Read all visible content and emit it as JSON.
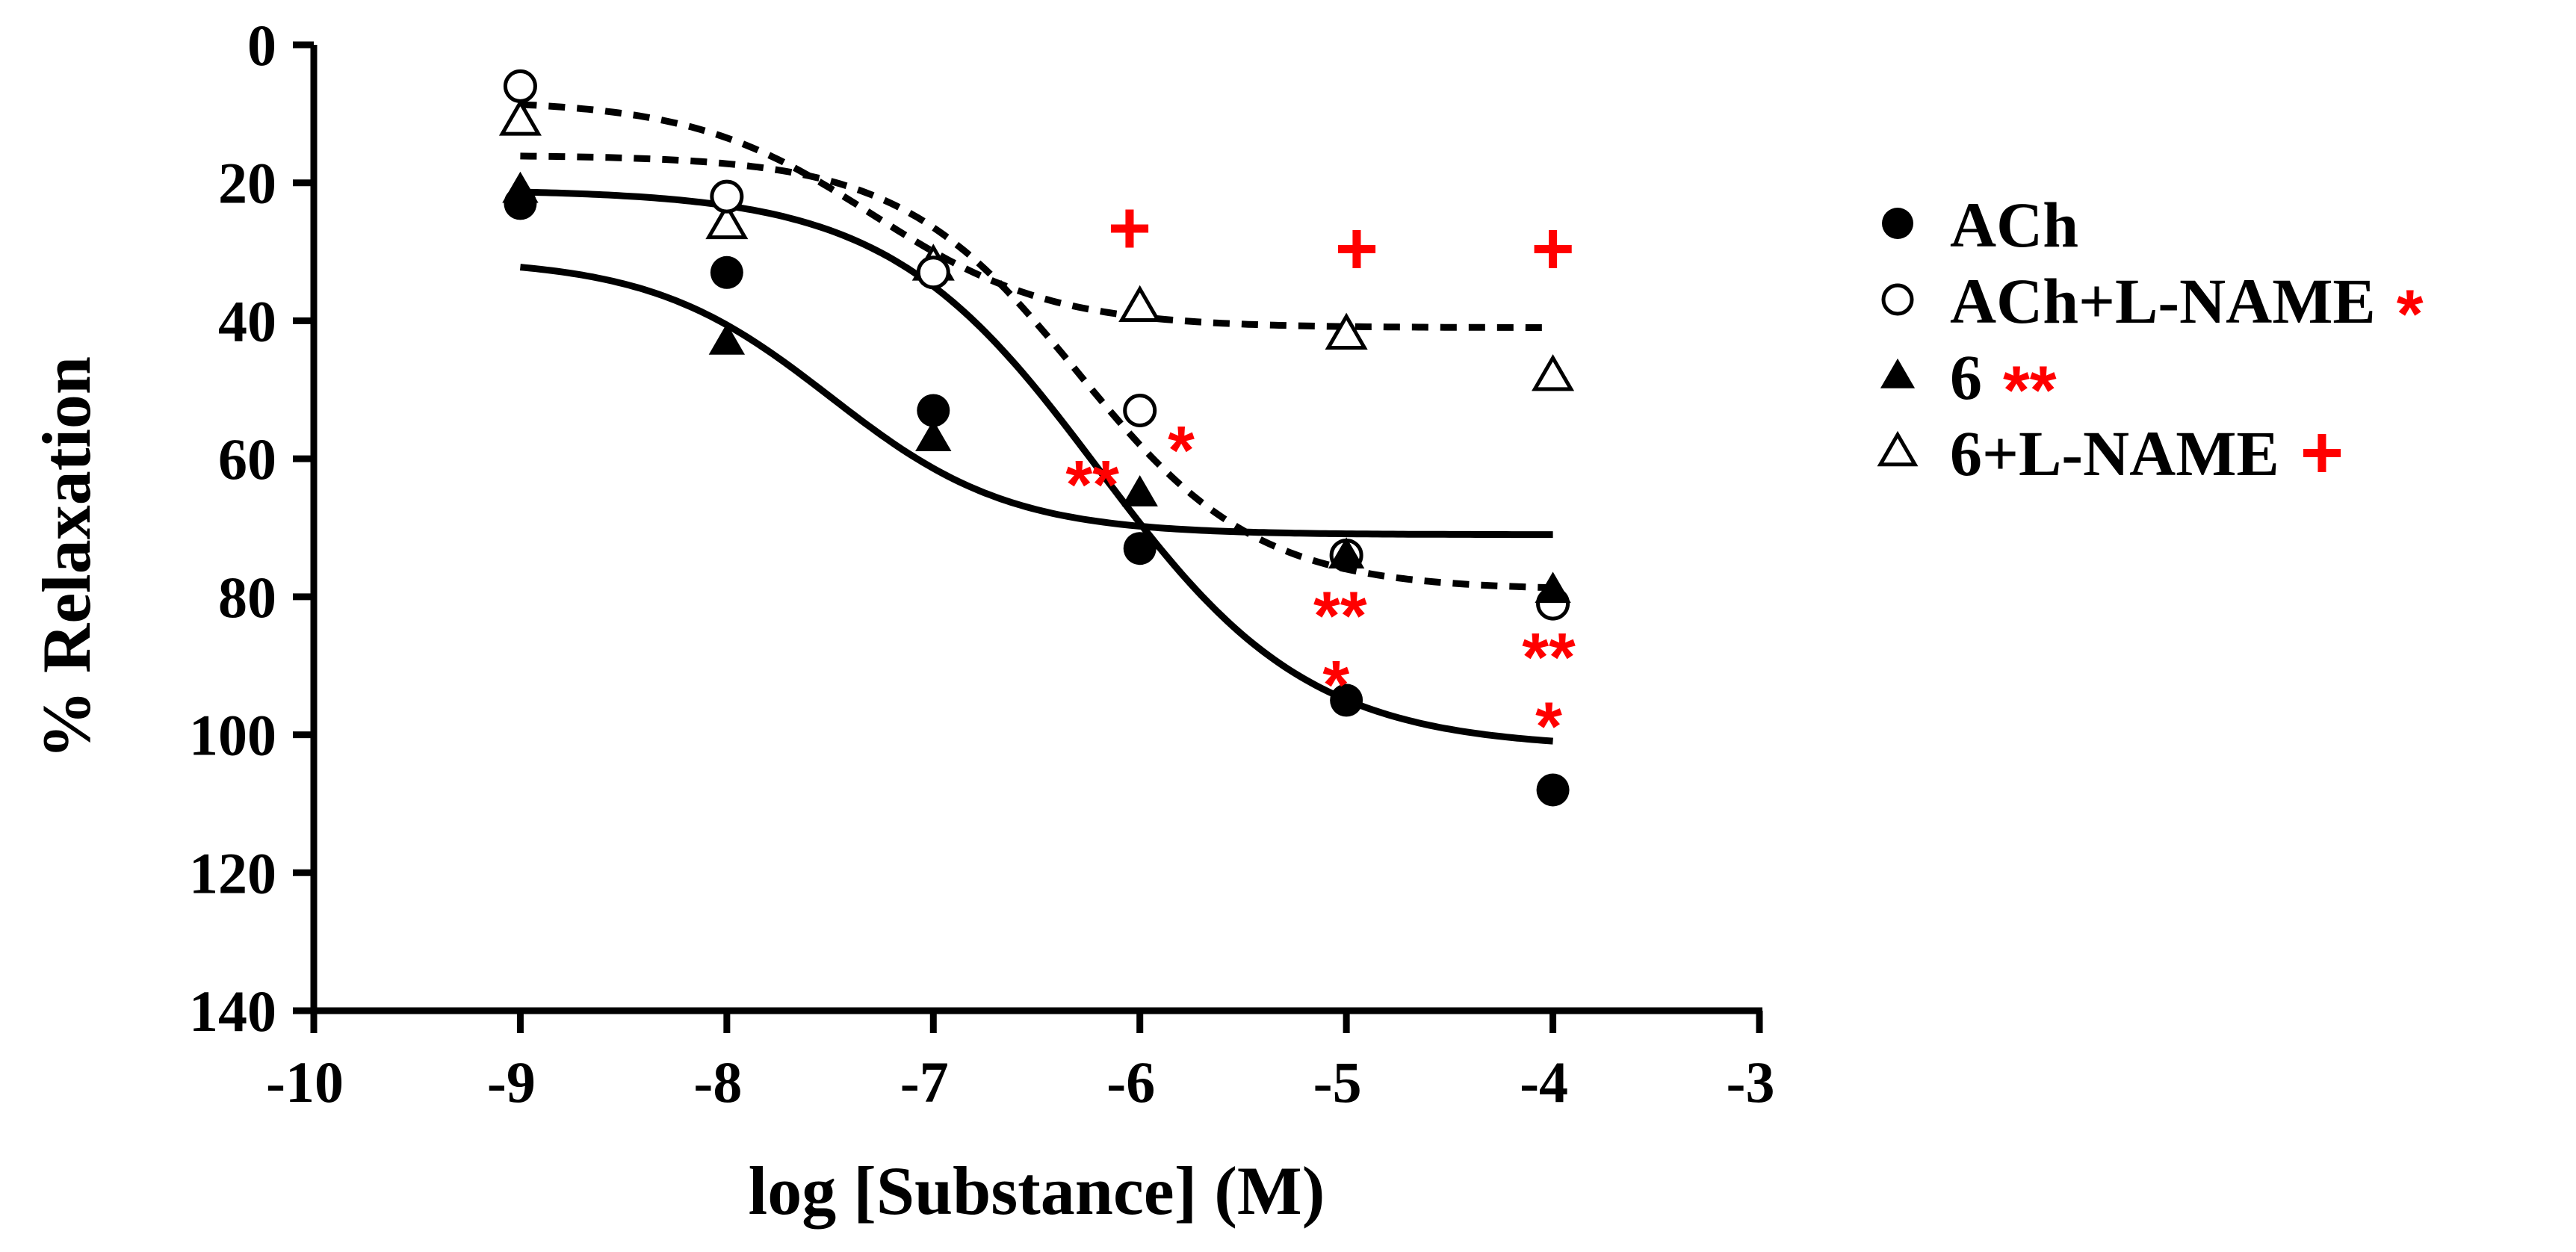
{
  "chart_data": {
    "type": "scatter",
    "xlabel": "log [Substance] (M)",
    "ylabel": "% Relaxation",
    "xlim": [
      -10,
      -3
    ],
    "ylim": [
      0,
      140
    ],
    "y_inverted": true,
    "x_ticks": [
      "-10",
      "-9",
      "-8",
      "-7",
      "-6",
      "-5",
      "-4",
      "-3"
    ],
    "y_ticks": [
      "0",
      "20",
      "40",
      "60",
      "80",
      "100",
      "120",
      "140"
    ],
    "grid": false,
    "legend_position": "right",
    "series": [
      {
        "name": "ACh",
        "marker": "filled-circle",
        "line": "solid",
        "color": "#000000",
        "x": [
          -9,
          -8,
          -7,
          -6,
          -5,
          -4
        ],
        "y": [
          23,
          33,
          53,
          73,
          95,
          108
        ],
        "fit": {
          "bottom": 21,
          "top": 102,
          "logEC50": -6.2,
          "hill": 0.85
        }
      },
      {
        "name": "ACh+L-NAME",
        "marker": "open-circle",
        "line": "dashed",
        "color": "#000000",
        "significance": "*",
        "x": [
          -9,
          -8,
          -7,
          -6,
          -5,
          -4
        ],
        "y": [
          6,
          22,
          33,
          53,
          74,
          81
        ],
        "fit": {
          "bottom": 16,
          "top": 79,
          "logEC50": -6.3,
          "hill": 1.0
        }
      },
      {
        "name": "6",
        "marker": "filled-triangle",
        "line": "solid",
        "color": "#000000",
        "significance": "**",
        "x": [
          -9,
          -8,
          -7,
          -6,
          -5,
          -4
        ],
        "y": [
          21,
          43,
          57,
          65,
          74,
          79
        ],
        "fit": {
          "bottom": 31,
          "top": 71,
          "logEC50": -7.5,
          "hill": 1.0
        }
      },
      {
        "name": "6+L-NAME",
        "marker": "open-triangle",
        "line": "dashed",
        "color": "#000000",
        "significance": "+",
        "x": [
          -9,
          -8,
          -7,
          -6,
          -5,
          -4
        ],
        "y": [
          11,
          26,
          32,
          38,
          42,
          48
        ],
        "fit": {
          "bottom": 8,
          "top": 41,
          "logEC50": -7.3,
          "hill": 1.0
        }
      }
    ],
    "annotations": [
      {
        "text": "+",
        "x": -6.05,
        "y": 27
      },
      {
        "text": "+",
        "x": -4.95,
        "y": 30
      },
      {
        "text": "+",
        "x": -4.0,
        "y": 30
      },
      {
        "text": "*",
        "x": -5.8,
        "y": 57
      },
      {
        "text": "**",
        "x": -6.23,
        "y": 62
      },
      {
        "text": "**",
        "x": -5.03,
        "y": 81
      },
      {
        "text": "*",
        "x": -5.05,
        "y": 91
      },
      {
        "text": "**",
        "x": -4.02,
        "y": 87
      },
      {
        "text": "*",
        "x": -4.02,
        "y": 97
      }
    ],
    "significance_color": "#ff0000"
  }
}
